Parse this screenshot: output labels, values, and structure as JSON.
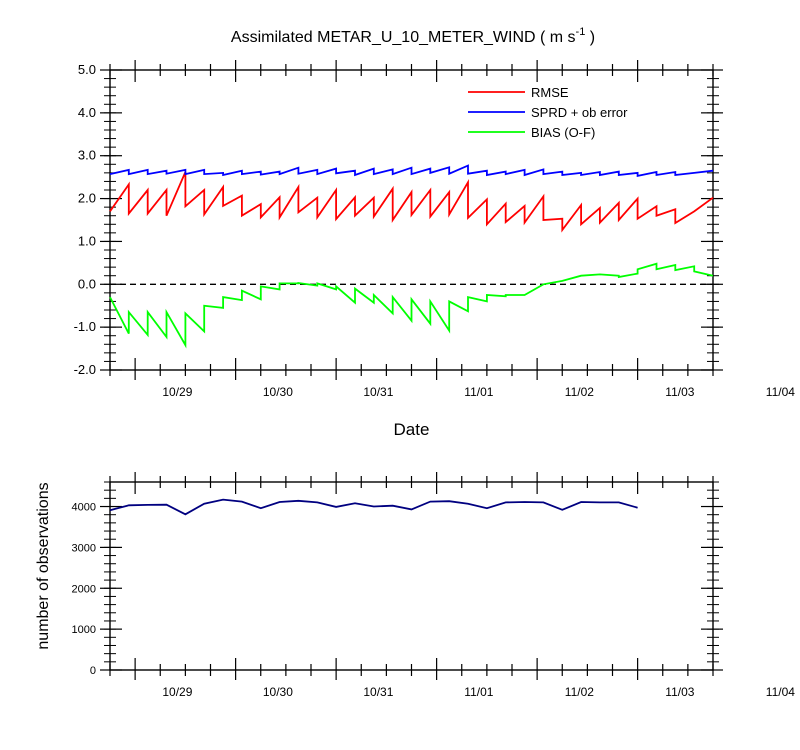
{
  "chart_data": [
    {
      "type": "line",
      "title": "Assimilated METAR_U_10_METER_WIND ( m s",
      "title_superscript": "-1",
      "title_suffix": " )",
      "xlabel": "Date",
      "ylabel": "",
      "ylim": [
        -2.0,
        5.0
      ],
      "y_ticks": [
        "5.0",
        "4.0",
        "3.0",
        "2.0",
        "1.0",
        "0.0",
        "-1.0",
        "-2.0"
      ],
      "x_tick_labels": [
        "10/29",
        "10/30",
        "10/31",
        "11/01",
        "11/02",
        "11/03",
        "11/04"
      ],
      "x_range_hours": [
        -6,
        138
      ],
      "reference_line": {
        "y": 0.0,
        "style": "dashed",
        "color": "#000000"
      },
      "legend_position": "top-right",
      "series": [
        {
          "name": "RMSE",
          "color": "#ff0000",
          "points": [
            [
              -6,
              1.7
            ],
            [
              -1.5,
              2.33
            ],
            [
              -1.5,
              1.65
            ],
            [
              3,
              2.2
            ],
            [
              3,
              1.65
            ],
            [
              7.5,
              2.2
            ],
            [
              7.5,
              1.6
            ],
            [
              12,
              2.62
            ],
            [
              12,
              1.82
            ],
            [
              16.5,
              2.2
            ],
            [
              16.5,
              1.63
            ],
            [
              21,
              2.27
            ],
            [
              21,
              1.83
            ],
            [
              25.5,
              2.07
            ],
            [
              25.5,
              1.6
            ],
            [
              30,
              1.87
            ],
            [
              30,
              1.56
            ],
            [
              34.5,
              2.03
            ],
            [
              34.5,
              1.56
            ],
            [
              39,
              2.27
            ],
            [
              39,
              1.68
            ],
            [
              43.5,
              2.02
            ],
            [
              43.5,
              1.56
            ],
            [
              48,
              2.2
            ],
            [
              48,
              1.52
            ],
            [
              52.5,
              2.03
            ],
            [
              52.5,
              1.6
            ],
            [
              57,
              2.02
            ],
            [
              57,
              1.58
            ],
            [
              61.5,
              2.23
            ],
            [
              61.5,
              1.5
            ],
            [
              66,
              2.15
            ],
            [
              66,
              1.62
            ],
            [
              70.5,
              2.2
            ],
            [
              70.5,
              1.58
            ],
            [
              75,
              2.15
            ],
            [
              75,
              1.63
            ],
            [
              79.5,
              2.38
            ],
            [
              79.5,
              1.55
            ],
            [
              84,
              1.98
            ],
            [
              84,
              1.4
            ],
            [
              88.5,
              1.88
            ],
            [
              88.5,
              1.45
            ],
            [
              93,
              1.83
            ],
            [
              93,
              1.44
            ],
            [
              97.5,
              2.05
            ],
            [
              97.5,
              1.5
            ],
            [
              102,
              1.53
            ],
            [
              102,
              1.27
            ],
            [
              106.5,
              1.85
            ],
            [
              106.5,
              1.4
            ],
            [
              111,
              1.78
            ],
            [
              111,
              1.44
            ],
            [
              115.5,
              1.9
            ],
            [
              115.5,
              1.5
            ],
            [
              120,
              2.0
            ],
            [
              120,
              1.53
            ],
            [
              124.5,
              1.82
            ],
            [
              124.5,
              1.6
            ],
            [
              129,
              1.75
            ],
            [
              129,
              1.43
            ],
            [
              133.5,
              1.7
            ],
            [
              138,
              2.02
            ]
          ]
        },
        {
          "name": "SPRD + ob error",
          "color": "#0000ff",
          "points": [
            [
              -6,
              2.57
            ],
            [
              -1.5,
              2.67
            ],
            [
              -1.5,
              2.57
            ],
            [
              3,
              2.67
            ],
            [
              3,
              2.57
            ],
            [
              7.5,
              2.65
            ],
            [
              7.5,
              2.58
            ],
            [
              12,
              2.67
            ],
            [
              12,
              2.57
            ],
            [
              16.5,
              2.67
            ],
            [
              16.5,
              2.57
            ],
            [
              21,
              2.6
            ],
            [
              21,
              2.55
            ],
            [
              25.5,
              2.65
            ],
            [
              25.5,
              2.57
            ],
            [
              30,
              2.63
            ],
            [
              30,
              2.56
            ],
            [
              34.5,
              2.63
            ],
            [
              34.5,
              2.57
            ],
            [
              39,
              2.72
            ],
            [
              39,
              2.58
            ],
            [
              43.5,
              2.67
            ],
            [
              43.5,
              2.57
            ],
            [
              48,
              2.7
            ],
            [
              48,
              2.59
            ],
            [
              52.5,
              2.65
            ],
            [
              52.5,
              2.55
            ],
            [
              57,
              2.7
            ],
            [
              57,
              2.57
            ],
            [
              61.5,
              2.68
            ],
            [
              61.5,
              2.57
            ],
            [
              66,
              2.72
            ],
            [
              66,
              2.57
            ],
            [
              70.5,
              2.7
            ],
            [
              70.5,
              2.6
            ],
            [
              75,
              2.73
            ],
            [
              75,
              2.58
            ],
            [
              79.5,
              2.77
            ],
            [
              79.5,
              2.58
            ],
            [
              84,
              2.65
            ],
            [
              84,
              2.55
            ],
            [
              88.5,
              2.63
            ],
            [
              88.5,
              2.57
            ],
            [
              93,
              2.67
            ],
            [
              93,
              2.55
            ],
            [
              97.5,
              2.68
            ],
            [
              97.5,
              2.57
            ],
            [
              102,
              2.63
            ],
            [
              102,
              2.55
            ],
            [
              106.5,
              2.6
            ],
            [
              106.5,
              2.55
            ],
            [
              111,
              2.62
            ],
            [
              111,
              2.55
            ],
            [
              115.5,
              2.63
            ],
            [
              115.5,
              2.55
            ],
            [
              120,
              2.6
            ],
            [
              120,
              2.53
            ],
            [
              124.5,
              2.62
            ],
            [
              124.5,
              2.55
            ],
            [
              129,
              2.62
            ],
            [
              129,
              2.55
            ],
            [
              133.5,
              2.6
            ],
            [
              138,
              2.65
            ]
          ]
        },
        {
          "name": "BIAS (O-F)",
          "color": "#00ff00",
          "points": [
            [
              -6,
              -0.3
            ],
            [
              -1.5,
              -1.15
            ],
            [
              -1.5,
              -0.65
            ],
            [
              3,
              -1.18
            ],
            [
              3,
              -0.65
            ],
            [
              7.5,
              -1.23
            ],
            [
              7.5,
              -0.65
            ],
            [
              12,
              -1.42
            ],
            [
              12,
              -0.68
            ],
            [
              16.5,
              -1.1
            ],
            [
              16.5,
              -0.5
            ],
            [
              21,
              -0.55
            ],
            [
              21,
              -0.3
            ],
            [
              25.5,
              -0.37
            ],
            [
              25.5,
              -0.15
            ],
            [
              30,
              -0.35
            ],
            [
              30,
              -0.05
            ],
            [
              34.5,
              -0.12
            ],
            [
              34.5,
              0.02
            ],
            [
              39,
              0.02
            ],
            [
              39,
              0.03
            ],
            [
              43.5,
              -0.03
            ],
            [
              43.5,
              0.02
            ],
            [
              48,
              -0.12
            ],
            [
              48,
              -0.05
            ],
            [
              52.5,
              -0.43
            ],
            [
              52.5,
              -0.1
            ],
            [
              57,
              -0.43
            ],
            [
              57,
              -0.25
            ],
            [
              61.5,
              -0.68
            ],
            [
              61.5,
              -0.3
            ],
            [
              66,
              -0.85
            ],
            [
              66,
              -0.35
            ],
            [
              70.5,
              -0.92
            ],
            [
              70.5,
              -0.4
            ],
            [
              75,
              -1.08
            ],
            [
              75,
              -0.4
            ],
            [
              79.5,
              -0.63
            ],
            [
              79.5,
              -0.3
            ],
            [
              84,
              -0.4
            ],
            [
              84,
              -0.25
            ],
            [
              88.5,
              -0.28
            ],
            [
              88.5,
              -0.25
            ],
            [
              93,
              -0.25
            ],
            [
              97.5,
              0.0
            ],
            [
              102,
              0.08
            ],
            [
              106.5,
              0.2
            ],
            [
              111,
              0.23
            ],
            [
              111,
              0.23
            ],
            [
              115.5,
              0.2
            ],
            [
              115.5,
              0.17
            ],
            [
              120,
              0.25
            ],
            [
              120,
              0.35
            ],
            [
              124.5,
              0.48
            ],
            [
              124.5,
              0.35
            ],
            [
              129,
              0.45
            ],
            [
              129,
              0.33
            ],
            [
              133.5,
              0.42
            ],
            [
              133.5,
              0.3
            ],
            [
              138,
              0.2
            ]
          ]
        }
      ]
    },
    {
      "type": "line",
      "xlabel": "",
      "ylabel": "number of observations",
      "ylim": [
        0,
        4600
      ],
      "y_ticks": [
        "4000",
        "3000",
        "2000",
        "1000",
        "0"
      ],
      "x_tick_labels": [
        "10/29",
        "10/30",
        "10/31",
        "11/01",
        "11/02",
        "11/03",
        "11/04"
      ],
      "x_range_hours": [
        -6,
        138
      ],
      "series": [
        {
          "name": "",
          "color": "#000080",
          "points": [
            [
              -6,
              3910
            ],
            [
              -1.5,
              4030
            ],
            [
              3,
              4040
            ],
            [
              7.5,
              4045
            ],
            [
              12,
              3810
            ],
            [
              16.5,
              4070
            ],
            [
              21,
              4170
            ],
            [
              25.5,
              4120
            ],
            [
              30,
              3960
            ],
            [
              34.5,
              4110
            ],
            [
              39,
              4140
            ],
            [
              43.5,
              4100
            ],
            [
              48,
              3990
            ],
            [
              52.5,
              4080
            ],
            [
              57,
              4000
            ],
            [
              61.5,
              4020
            ],
            [
              66,
              3930
            ],
            [
              70.5,
              4120
            ],
            [
              75,
              4130
            ],
            [
              79.5,
              4070
            ],
            [
              84,
              3960
            ],
            [
              88.5,
              4100
            ],
            [
              93,
              4110
            ],
            [
              97.5,
              4100
            ],
            [
              102,
              3920
            ],
            [
              106.5,
              4110
            ],
            [
              111,
              4100
            ],
            [
              115.5,
              4100
            ],
            [
              120,
              3970
            ]
          ]
        }
      ]
    }
  ]
}
